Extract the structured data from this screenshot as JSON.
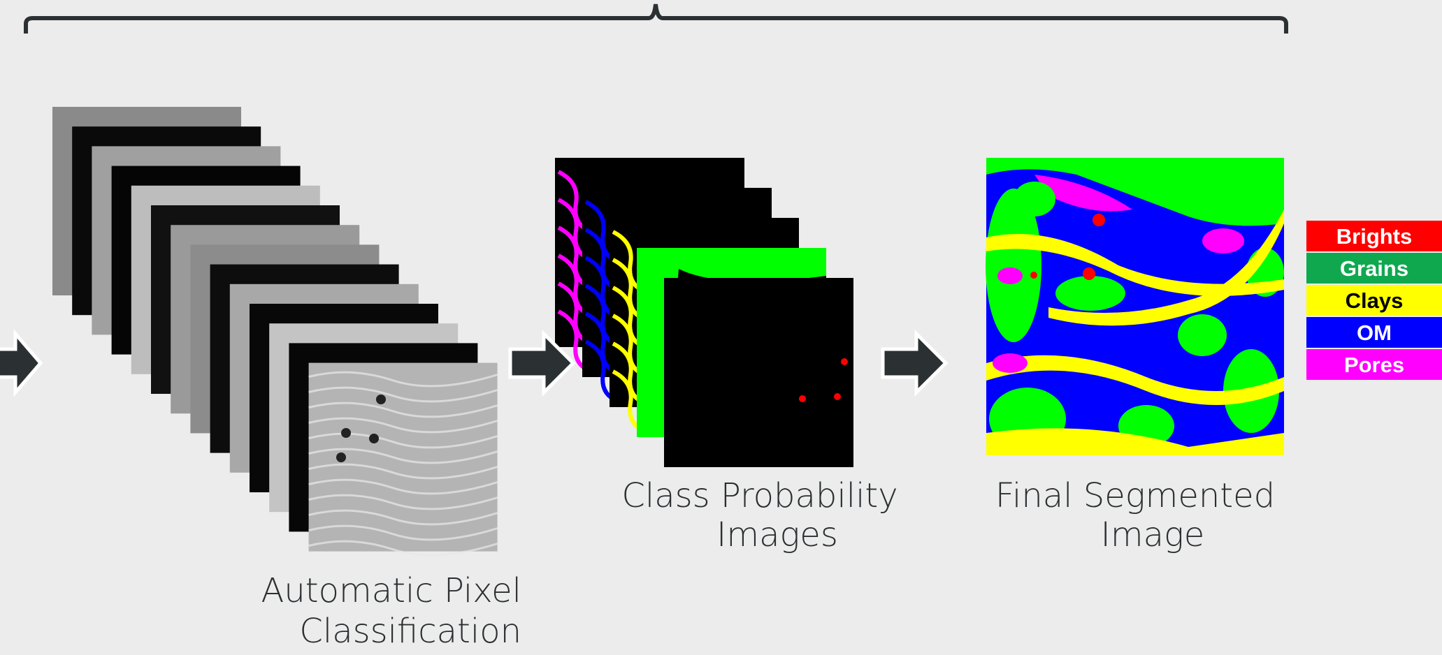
{
  "steps": [
    {
      "lines": [
        "Automatic Pixel",
        "Classification"
      ]
    },
    {
      "lines": [
        "Class Probability",
        "Images"
      ]
    },
    {
      "lines": [
        "Final Segmented",
        "Image"
      ]
    }
  ],
  "legend": [
    {
      "label": "Brights",
      "color": "#ff0000",
      "text_color": "#ffffff"
    },
    {
      "label": "Grains",
      "color": "#10a84f",
      "text_color": "#ffffff"
    },
    {
      "label": "Clays",
      "color": "#ffff00",
      "text_color": "#000000"
    },
    {
      "label": "OM",
      "color": "#0000ff",
      "text_color": "#ffffff"
    },
    {
      "label": "Pores",
      "color": "#ff00ff",
      "text_color": "#ffffff"
    }
  ]
}
